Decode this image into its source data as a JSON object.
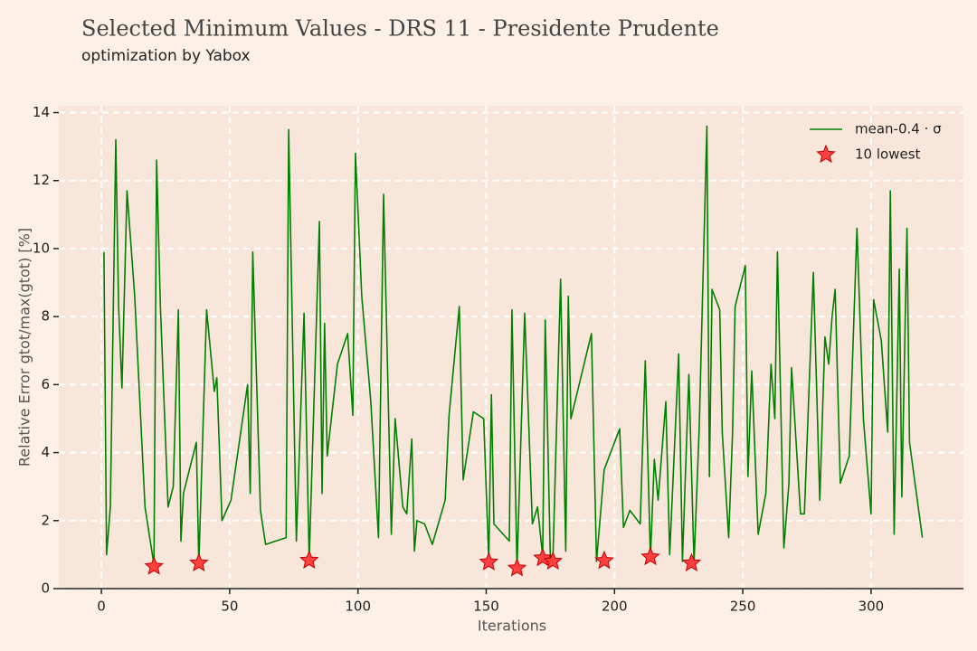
{
  "chart_data": {
    "type": "line",
    "title": "Selected Minimum Values - DRS 11 - Presidente Prudente",
    "subtitle": "optimization by Yabox",
    "x_label": "Iterations",
    "y_label": "Relative Error gtot/max(gtot) [%]",
    "xlim": [
      -16.6,
      336
    ],
    "ylim": [
      0,
      14.2
    ],
    "xticks": [
      0,
      50,
      100,
      150,
      200,
      250,
      300
    ],
    "yticks": [
      0,
      2,
      4,
      6,
      8,
      10,
      12,
      14
    ],
    "grid": true,
    "legend": "upper right",
    "series": [
      {
        "name": "mean-0.4 · σ",
        "kind": "line",
        "color": "#008000",
        "x": [
          1,
          2,
          3.5,
          5.6,
          6.7,
          8,
          10,
          13,
          17,
          20.5,
          21.5,
          23,
          26,
          28,
          30,
          31,
          32,
          37,
          38,
          41,
          44,
          45,
          47,
          50.5,
          57,
          58,
          59,
          62,
          64,
          72,
          73,
          76,
          79,
          81,
          85,
          86,
          87,
          88,
          92,
          96,
          98,
          99,
          101.5,
          105,
          108,
          110,
          113,
          114.5,
          117.5,
          119,
          121,
          122,
          123,
          126,
          129,
          134,
          135.5,
          139.5,
          141,
          145,
          149,
          151,
          152,
          153,
          159,
          160,
          162,
          165,
          168,
          170,
          172,
          173,
          175,
          176,
          179,
          181,
          182,
          183,
          191,
          193,
          196,
          198,
          202,
          203.5,
          206,
          210,
          212,
          214,
          215.5,
          217,
          220,
          221.5,
          225,
          226.5,
          229,
          231,
          233,
          236,
          237,
          238,
          241,
          242,
          244.5,
          246,
          247,
          251,
          252,
          253.5,
          256,
          259,
          261,
          262.5,
          263.5,
          266,
          268,
          269,
          272.5,
          274,
          277.5,
          280,
          282,
          283.5,
          284.8,
          286,
          288,
          291.5,
          294.5,
          297,
          300,
          301,
          304,
          306.5,
          307.5,
          309,
          311,
          312,
          314,
          315,
          320
        ],
        "values": [
          9.9,
          1.0,
          2.4,
          13.2,
          8.3,
          5.9,
          11.7,
          8.6,
          2.4,
          0.7,
          12.6,
          8.3,
          2.4,
          3.0,
          8.2,
          1.4,
          2.8,
          4.3,
          0.75,
          8.2,
          5.8,
          6.2,
          2.0,
          2.6,
          6.0,
          2.8,
          9.9,
          2.3,
          1.3,
          1.5,
          13.5,
          1.4,
          8.1,
          0.85,
          10.8,
          2.8,
          7.8,
          3.9,
          6.6,
          7.5,
          5.1,
          12.8,
          8.6,
          5.5,
          1.5,
          11.6,
          1.6,
          5.0,
          2.4,
          2.2,
          4.4,
          1.1,
          2.0,
          1.9,
          1.3,
          2.6,
          5.1,
          8.3,
          3.2,
          5.2,
          5.0,
          0.8,
          5.7,
          1.9,
          1.4,
          8.2,
          0.6,
          8.1,
          1.9,
          2.4,
          0.95,
          7.9,
          0.85,
          0.85,
          9.1,
          1.1,
          8.6,
          5.0,
          7.5,
          0.8,
          3.5,
          3.9,
          4.7,
          1.8,
          2.3,
          1.9,
          6.7,
          0.9,
          3.8,
          2.6,
          5.5,
          1.0,
          6.9,
          0.8,
          6.3,
          0.75,
          4.7,
          13.6,
          3.3,
          8.8,
          8.2,
          4.6,
          1.5,
          4.6,
          8.3,
          9.5,
          3.3,
          6.4,
          1.6,
          2.8,
          6.6,
          5.0,
          9.9,
          1.2,
          3.1,
          6.5,
          2.2,
          2.2,
          9.3,
          2.6,
          7.4,
          6.6,
          8.0,
          8.8,
          3.1,
          3.9,
          10.6,
          5.0,
          2.2,
          8.5,
          7.3,
          4.6,
          11.7,
          1.6,
          9.4,
          2.7,
          10.6,
          4.3,
          1.5
        ]
      },
      {
        "name": "10 lowest",
        "kind": "scatter",
        "color": "#ff4040",
        "x": [
          20.5,
          38,
          81,
          151,
          162,
          172,
          176,
          196,
          214,
          230
        ],
        "values": [
          0.65,
          0.75,
          0.83,
          0.78,
          0.6,
          0.9,
          0.8,
          0.82,
          0.93,
          0.75
        ]
      }
    ]
  }
}
